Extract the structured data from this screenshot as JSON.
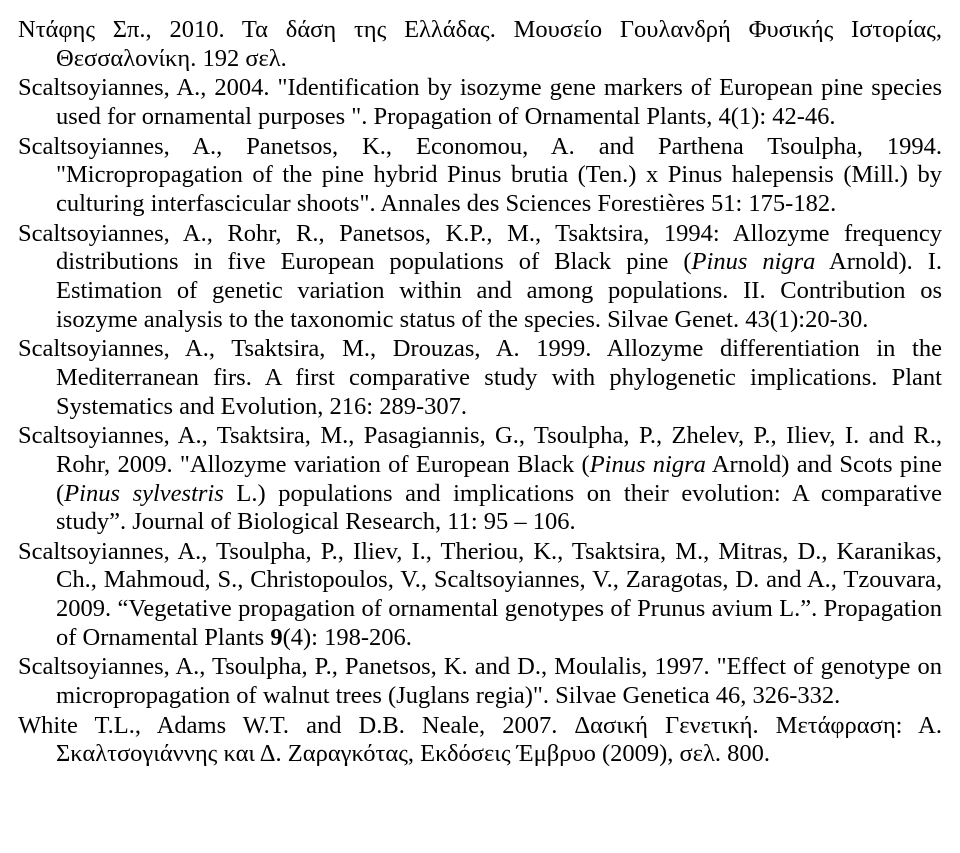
{
  "refs": [
    "Ντάφης Σπ., 2010. Τα δάση της Ελλάδας. Μουσείο Γουλανδρή Φυσικής Ιστορίας, Θεσσαλονίκη. 192 σελ.",
    "Scaltsoyiannes, A., 2004. \"Identification by isozyme gene markers of European pine species used for ornamental purposes \". Propagation of Ornamental Plants, 4(1): 42-46.",
    "Scaltsoyiannes, A., Panetsos, K., Economou, A. and Parthena Tsoulpha, 1994. \"Micropropagation of the pine hybrid Pinus brutia (Ten.) x Pinus halepensis (Mill.) by culturing interfascicular shoots\". Annales des Sciences Forestières 51: 175-182.",
    "Scaltsoyiannes, A., Rohr, R., Panetsos, K.P., M., Tsaktsira, 1994: Allozyme frequency distributions in five European populations of Black pine (<i>Pinus nigra</i> Arnold). I. Estimation of genetic variation within and among populations. II. Contribution os isozyme analysis to the taxonomic status of the species. Silvae Genet. 43(1):20-30.",
    "Scaltsoyiannes, A., Tsaktsira, M., Drouzas, A. 1999. Allozyme differentiation in the Mediterranean firs. A first comparative study with phylogenetic implications. Plant Systematics and Evolution, 216: 289-307.",
    "Scaltsoyiannes, A., Tsaktsira, M., Pasagiannis, G., Tsoulpha, P., Zhelev, P., Iliev, I. and R., Rohr, 2009. \"Allozyme variation of European Black (<i>Pinus nigra</i> Arnold) and Scots pine (<i>Pinus sylvestris</i> L.) populations and implications on their evolution: A comparative study”. Journal of Biological Research, 11: 95 – 106.",
    "Scaltsoyiannes, A., Tsoulpha, P., Iliev, I., Theriou, K., Tsaktsira, M., Mitras, D., Karanikas, Ch., Mahmoud, S., Christopoulos, V., Scaltsoyiannes, V., Zaragotas, D. and A., Tzouvara, 2009. “Vegetative propagation of ornamental genotypes of Prunus avium L.”. Propagation of Ornamental Plants <b>9</b>(4): 198-206.",
    "Scaltsoyiannes, A., Tsoulpha, P., Panetsos, K. and D., Moulalis, 1997. \"Effect of genotype on micropropagation of walnut trees (Juglans regia)\". Silvae Genetica 46, 326-332.",
    "White T.L., Adams W.T. and D.B. Neale, 2007. Δασική Γενετική. Μετάφραση: Α. Σκαλτσογιάννης και Δ. Ζαραγκότας, Εκδόσεις Έμβρυο (2009), σελ. 800."
  ]
}
